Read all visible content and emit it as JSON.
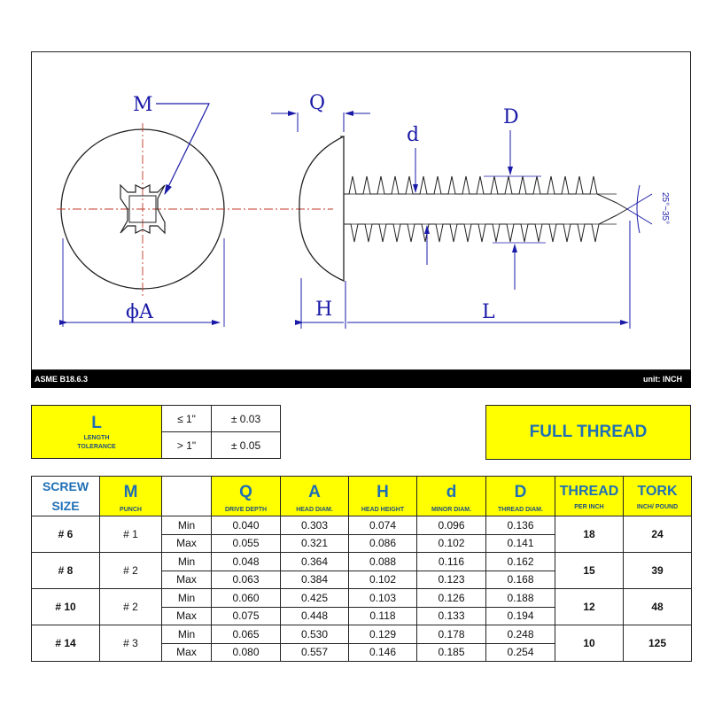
{
  "drawing": {
    "labels": {
      "M": "M",
      "Q": "Q",
      "d": "d",
      "D": "D",
      "A": "ϕA",
      "H": "H",
      "L": "L",
      "angle": "25°~35°"
    },
    "colors": {
      "dimension": "#1a1aa8",
      "centerline": "#c0392b",
      "outline": "#222222"
    }
  },
  "footer_bar": {
    "standard": "ASME B18.6.3",
    "unit": "unit: INCH"
  },
  "length_tolerance": {
    "symbol": "L",
    "label_line1": "LENGTH",
    "label_line2": "TOLERANCE",
    "rows": [
      {
        "condition": "≤ 1\"",
        "tolerance": "± 0.03"
      },
      {
        "condition": "> 1\"",
        "tolerance": "± 0.05"
      }
    ]
  },
  "thread_type": "FULL THREAD",
  "spec_table": {
    "headers": [
      {
        "title": "SCREW SIZE",
        "sub": ""
      },
      {
        "title": "M",
        "sub": "PUNCH"
      },
      {
        "title": "",
        "sub": ""
      },
      {
        "title": "Q",
        "sub": "DRIVE DEPTH"
      },
      {
        "title": "A",
        "sub": "HEAD DIAM."
      },
      {
        "title": "H",
        "sub": "HEAD HEIGHT"
      },
      {
        "title": "d",
        "sub": "MINOR DIAM."
      },
      {
        "title": "D",
        "sub": "THREAD DIAM."
      },
      {
        "title": "THREAD",
        "sub": "PER INCH"
      },
      {
        "title": "TORK",
        "sub": "INCH/ POUND"
      }
    ],
    "rows": [
      {
        "size": "# 6",
        "punch": "# 1",
        "thread": "18",
        "tork": "24",
        "min": {
          "label": "Min",
          "Q": "0.040",
          "A": "0.303",
          "H": "0.074",
          "d": "0.096",
          "D": "0.136"
        },
        "max": {
          "label": "Max",
          "Q": "0.055",
          "A": "0.321",
          "H": "0.086",
          "d": "0.102",
          "D": "0.141"
        }
      },
      {
        "size": "# 8",
        "punch": "# 2",
        "thread": "15",
        "tork": "39",
        "min": {
          "label": "Min",
          "Q": "0.048",
          "A": "0.364",
          "H": "0.088",
          "d": "0.116",
          "D": "0.162"
        },
        "max": {
          "label": "Max",
          "Q": "0.063",
          "A": "0.384",
          "H": "0.102",
          "d": "0.123",
          "D": "0.168"
        }
      },
      {
        "size": "# 10",
        "punch": "# 2",
        "thread": "12",
        "tork": "48",
        "min": {
          "label": "Min",
          "Q": "0.060",
          "A": "0.425",
          "H": "0.103",
          "d": "0.126",
          "D": "0.188"
        },
        "max": {
          "label": "Max",
          "Q": "0.075",
          "A": "0.448",
          "H": "0.118",
          "d": "0.133",
          "D": "0.194"
        }
      },
      {
        "size": "# 14",
        "punch": "# 3",
        "thread": "10",
        "tork": "125",
        "min": {
          "label": "Min",
          "Q": "0.065",
          "A": "0.530",
          "H": "0.129",
          "d": "0.178",
          "D": "0.248"
        },
        "max": {
          "label": "Max",
          "Q": "0.080",
          "A": "0.557",
          "H": "0.146",
          "d": "0.185",
          "D": "0.254"
        }
      }
    ]
  }
}
